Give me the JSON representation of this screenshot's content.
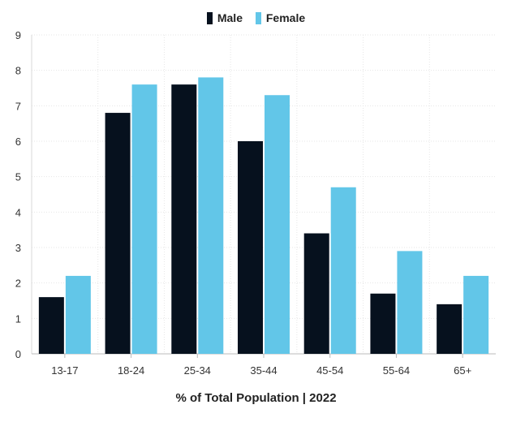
{
  "chart_data": {
    "type": "bar",
    "categories": [
      "13-17",
      "18-24",
      "25-34",
      "35-44",
      "45-54",
      "55-64",
      "65+"
    ],
    "series": [
      {
        "name": "Male",
        "color": "#06111e",
        "values": [
          1.6,
          6.8,
          7.6,
          6.0,
          3.4,
          1.7,
          1.4
        ]
      },
      {
        "name": "Female",
        "color": "#62c6e8",
        "values": [
          2.2,
          7.6,
          7.8,
          7.3,
          4.7,
          2.9,
          2.2
        ]
      }
    ],
    "title": "",
    "xlabel": "% of Total Population | 2022",
    "ylabel": "",
    "ylim": [
      0,
      9
    ],
    "yticks": [
      0,
      1,
      2,
      3,
      4,
      5,
      6,
      7,
      8,
      9
    ],
    "grid": true,
    "legend": "top-center"
  }
}
